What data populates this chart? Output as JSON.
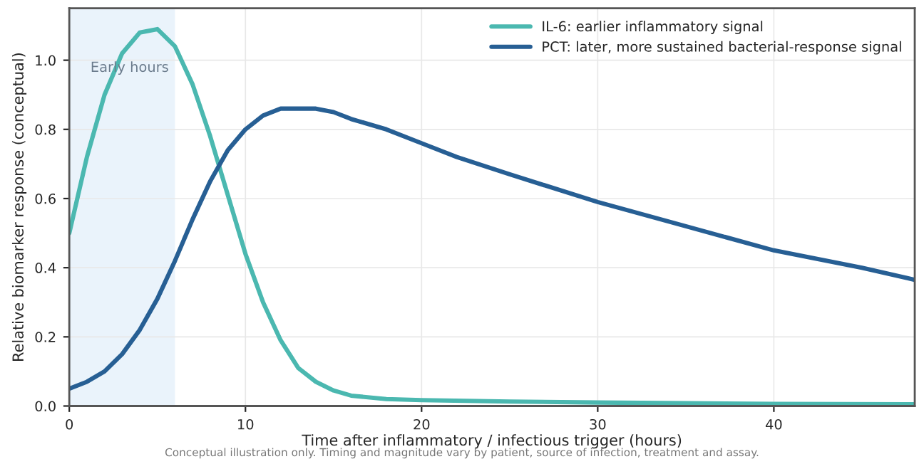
{
  "chart_data": {
    "type": "line",
    "xlabel": "Time after inflammatory / infectious trigger (hours)",
    "ylabel": "Relative biomarker response (conceptual)",
    "annotations": [
      "Conceptual illustration only. Timing and magnitude vary by patient, source of infection, treatment and assay."
    ],
    "series": [
      {
        "name": "IL-6: earlier inflammatory signal",
        "color": "#4bb8b0",
        "x": [
          0,
          1,
          2,
          3,
          4,
          5,
          6,
          7,
          8,
          9,
          10,
          11,
          12,
          13,
          14,
          15,
          16,
          18,
          20,
          25,
          30,
          35,
          40,
          48
        ],
        "values": [
          0.5,
          0.72,
          0.9,
          1.02,
          1.08,
          1.09,
          1.04,
          0.93,
          0.78,
          0.61,
          0.44,
          0.3,
          0.19,
          0.11,
          0.07,
          0.045,
          0.03,
          0.02,
          0.017,
          0.013,
          0.01,
          0.008,
          0.006,
          0.005
        ]
      },
      {
        "name": "PCT: later, more sustained bacterial-response signal",
        "color": "#275f94",
        "x": [
          0,
          1,
          2,
          3,
          4,
          5,
          6,
          7,
          8,
          9,
          10,
          11,
          12,
          13,
          14,
          15,
          16,
          18,
          20,
          22,
          25,
          30,
          35,
          40,
          45,
          48
        ],
        "values": [
          0.05,
          0.07,
          0.1,
          0.15,
          0.22,
          0.31,
          0.42,
          0.54,
          0.65,
          0.74,
          0.8,
          0.84,
          0.86,
          0.86,
          0.86,
          0.85,
          0.83,
          0.8,
          0.76,
          0.72,
          0.67,
          0.59,
          0.52,
          0.45,
          0.4,
          0.365
        ]
      }
    ],
    "bands": [
      {
        "axis": "x",
        "from": 0,
        "to": 6,
        "label": "Early hours",
        "color": "#eaf3fb"
      }
    ],
    "xlim": [
      0,
      48
    ],
    "xticks": [
      0,
      10,
      20,
      30,
      40
    ],
    "ylim": [
      0,
      1.15
    ],
    "yticks": [
      {
        "value": 0,
        "label": "0.0"
      },
      0.2,
      0.4,
      0.6,
      0.8,
      {
        "value": 1,
        "label": "1.0"
      }
    ],
    "grid": true,
    "legend": "top right",
    "line_style": "solid",
    "marker": "none"
  }
}
